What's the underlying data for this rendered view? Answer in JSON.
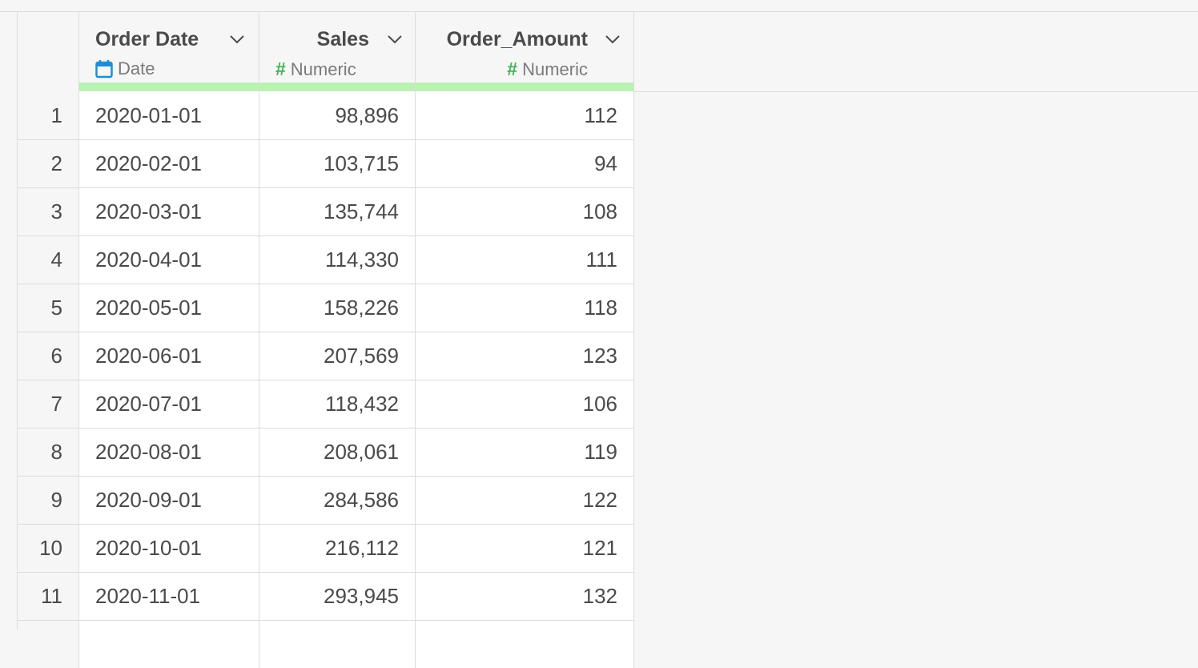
{
  "table": {
    "columns": [
      {
        "name": "Order Date",
        "type_label": "Date",
        "type_icon": "calendar-icon"
      },
      {
        "name": "Sales",
        "type_label": "Numeric",
        "type_icon": "hash-icon"
      },
      {
        "name": "Order_Amount",
        "type_label": "Numeric",
        "type_icon": "hash-icon"
      }
    ],
    "rows": [
      {
        "index": "1",
        "order_date": "2020-01-01",
        "sales": "98,896",
        "order_amount": "112"
      },
      {
        "index": "2",
        "order_date": "2020-02-01",
        "sales": "103,715",
        "order_amount": "94"
      },
      {
        "index": "3",
        "order_date": "2020-03-01",
        "sales": "135,744",
        "order_amount": "108"
      },
      {
        "index": "4",
        "order_date": "2020-04-01",
        "sales": "114,330",
        "order_amount": "111"
      },
      {
        "index": "5",
        "order_date": "2020-05-01",
        "sales": "158,226",
        "order_amount": "118"
      },
      {
        "index": "6",
        "order_date": "2020-06-01",
        "sales": "207,569",
        "order_amount": "123"
      },
      {
        "index": "7",
        "order_date": "2020-07-01",
        "sales": "118,432",
        "order_amount": "106"
      },
      {
        "index": "8",
        "order_date": "2020-08-01",
        "sales": "208,061",
        "order_amount": "119"
      },
      {
        "index": "9",
        "order_date": "2020-09-01",
        "sales": "284,586",
        "order_amount": "122"
      },
      {
        "index": "10",
        "order_date": "2020-10-01",
        "sales": "216,112",
        "order_amount": "121"
      },
      {
        "index": "11",
        "order_date": "2020-11-01",
        "sales": "293,945",
        "order_amount": "132"
      }
    ]
  },
  "colors": {
    "date_icon": "#1a8fd6",
    "numeric_icon": "#3fb34f",
    "quality_bar": "#b9f2b3"
  }
}
